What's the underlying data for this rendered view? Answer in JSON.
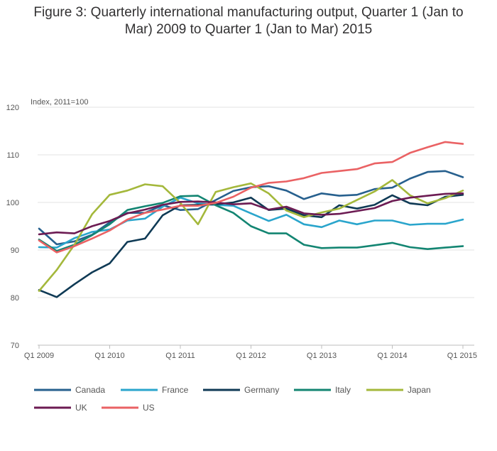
{
  "title_line1": "Figure 3: Quarterly international manufacturing output, Quarter 1 (Jan to",
  "title_line2": "Mar) 2009 to Quarter 1 (Jan to Mar) 2015",
  "chart_data": {
    "type": "line",
    "title": "Figure 3: Quarterly international manufacturing output, Quarter 1 (Jan to Mar) 2009 to Quarter 1 (Jan to Mar) 2015",
    "ylabel": "Index, 2011=100",
    "ylim": [
      70,
      120
    ],
    "yticks": [
      70,
      80,
      90,
      100,
      110,
      120
    ],
    "grid": true,
    "legend_position": "bottom",
    "x_labels": [
      "Q1 2009",
      "Q2 2009",
      "Q3 2009",
      "Q4 2009",
      "Q1 2010",
      "Q2 2010",
      "Q3 2010",
      "Q4 2010",
      "Q1 2011",
      "Q2 2011",
      "Q3 2011",
      "Q4 2011",
      "Q1 2012",
      "Q2 2012",
      "Q3 2012",
      "Q4 2012",
      "Q1 2013",
      "Q2 2013",
      "Q3 2013",
      "Q4 2013",
      "Q1 2014",
      "Q2 2014",
      "Q3 2014",
      "Q4 2014",
      "Q1 2015"
    ],
    "xticks_shown": [
      "Q1 2009",
      "Q1 2010",
      "Q1 2011",
      "Q1 2012",
      "Q1 2013",
      "Q1 2014",
      "Q1 2015"
    ],
    "series": [
      {
        "name": "Canada",
        "color": "#27608e",
        "values": [
          94.5,
          91.2,
          91.8,
          93.2,
          95.8,
          97.8,
          97.8,
          99.4,
          98.4,
          98.6,
          100.5,
          102.4,
          103.2,
          103.4,
          102.5,
          100.7,
          101.9,
          101.4,
          101.6,
          102.8,
          103.1,
          105.0,
          106.4,
          106.6,
          105.3
        ]
      },
      {
        "name": "France",
        "color": "#2aa5cc",
        "values": [
          90.6,
          90.5,
          92.5,
          93.8,
          94.3,
          96.2,
          96.6,
          99.1,
          101.0,
          99.8,
          99.5,
          99.3,
          97.7,
          96.1,
          97.4,
          95.4,
          94.8,
          96.2,
          95.4,
          96.2,
          96.2,
          95.3,
          95.5,
          95.5,
          96.4
        ]
      },
      {
        "name": "Germany",
        "color": "#0f3a55",
        "values": [
          81.6,
          80.1,
          82.8,
          85.3,
          87.2,
          91.7,
          92.4,
          97.3,
          99.4,
          99.5,
          99.6,
          100.0,
          101.0,
          98.4,
          98.7,
          97.3,
          96.9,
          99.4,
          98.7,
          99.5,
          101.5,
          99.8,
          99.4,
          101.2,
          101.6
        ]
      },
      {
        "name": "Italy",
        "color": "#138572",
        "values": [
          92.2,
          89.8,
          91.1,
          93.1,
          95.4,
          98.4,
          99.2,
          99.9,
          101.3,
          101.4,
          99.4,
          97.8,
          95.0,
          93.5,
          93.5,
          91.1,
          90.4,
          90.5,
          90.5,
          91.0,
          91.5,
          90.6,
          90.2,
          90.5,
          90.8
        ]
      },
      {
        "name": "Japan",
        "color": "#a4b83b",
        "values": [
          81.4,
          85.8,
          91.1,
          97.5,
          101.6,
          102.5,
          103.8,
          103.4,
          99.9,
          95.4,
          102.2,
          103.2,
          104.0,
          101.9,
          98.3,
          96.9,
          97.9,
          98.7,
          100.5,
          102.3,
          104.7,
          101.5,
          99.8,
          100.9,
          102.5
        ]
      },
      {
        "name": "UK",
        "color": "#6c1b53",
        "values": [
          93.3,
          93.7,
          93.5,
          95.0,
          96.1,
          97.7,
          98.5,
          99.5,
          100.1,
          100.2,
          100.0,
          99.6,
          99.8,
          98.5,
          99.1,
          97.7,
          97.4,
          97.6,
          98.2,
          98.8,
          100.3,
          101.0,
          101.4,
          101.8,
          101.9
        ]
      },
      {
        "name": "US",
        "color": "#ea6264",
        "values": [
          92.0,
          89.5,
          90.8,
          92.4,
          94.1,
          96.4,
          97.8,
          98.5,
          99.3,
          99.3,
          99.9,
          101.2,
          103.1,
          104.1,
          104.4,
          105.1,
          106.2,
          106.6,
          107.0,
          108.2,
          108.5,
          110.4,
          111.6,
          112.7,
          112.3
        ]
      }
    ]
  }
}
